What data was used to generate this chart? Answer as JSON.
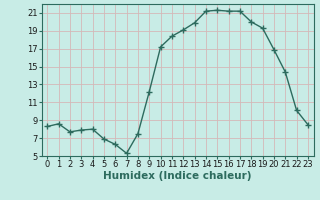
{
  "x": [
    0,
    1,
    2,
    3,
    4,
    5,
    6,
    7,
    8,
    9,
    10,
    11,
    12,
    13,
    14,
    15,
    16,
    17,
    18,
    19,
    20,
    21,
    22,
    23
  ],
  "y": [
    8.3,
    8.6,
    7.7,
    7.9,
    8.0,
    6.9,
    6.3,
    5.3,
    7.5,
    12.2,
    17.2,
    18.4,
    19.1,
    19.9,
    21.2,
    21.3,
    21.2,
    21.2,
    20.0,
    19.3,
    16.9,
    14.4,
    10.1,
    8.5
  ],
  "line_color": "#2d6b5e",
  "marker": "+",
  "marker_size": 4.0,
  "bg_color": "#c8ece6",
  "grid_color": "#d4b8b8",
  "xlabel": "Humidex (Indice chaleur)",
  "xlim": [
    -0.5,
    23.5
  ],
  "ylim": [
    5,
    22
  ],
  "yticks": [
    5,
    7,
    9,
    11,
    13,
    15,
    17,
    19,
    21
  ],
  "xticks": [
    0,
    1,
    2,
    3,
    4,
    5,
    6,
    7,
    8,
    9,
    10,
    11,
    12,
    13,
    14,
    15,
    16,
    17,
    18,
    19,
    20,
    21,
    22,
    23
  ],
  "xtick_labels": [
    "0",
    "1",
    "2",
    "3",
    "4",
    "5",
    "6",
    "7",
    "8",
    "9",
    "10",
    "11",
    "12",
    "13",
    "14",
    "15",
    "16",
    "17",
    "18",
    "19",
    "20",
    "21",
    "22",
    "23"
  ],
  "xlabel_fontsize": 7.5,
  "tick_fontsize": 6,
  "linewidth": 1.0
}
